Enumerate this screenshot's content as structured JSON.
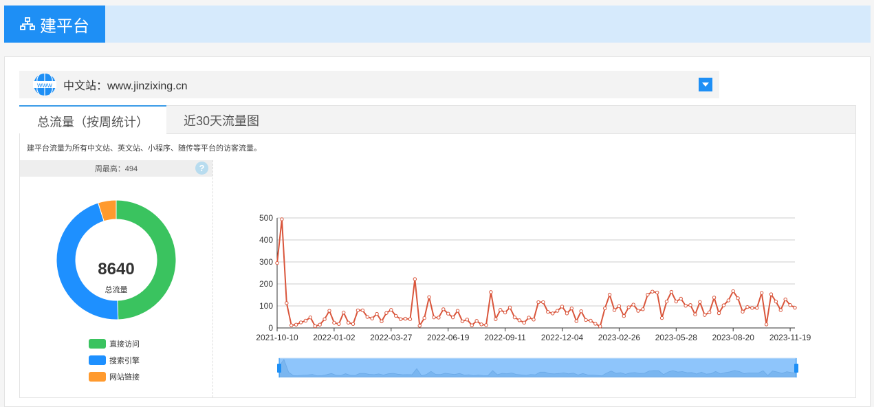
{
  "header": {
    "title": "建平台",
    "icon": "sitemap-icon"
  },
  "site_selector": {
    "label": "中文站：www.jinzixing.cn",
    "icon": "www-globe-icon"
  },
  "tabs": [
    {
      "label": "总流量（按周统计）",
      "active": true
    },
    {
      "label": "近30天流量图",
      "active": false
    }
  ],
  "description": "建平台流量为所有中文站、英文站、小程序、随传等平台的访客流量。",
  "weekly_max": "周最高：494",
  "donut": {
    "total": "8640",
    "total_label": "总流量"
  },
  "colors": {
    "accent": "#1e8ff5",
    "line": "#d9553b",
    "direct": "#3ac35f",
    "search": "#1e90ff",
    "link": "#ff9a2e"
  },
  "chart_data": [
    {
      "type": "pie",
      "variant": "donut",
      "categories": [
        "直接访问",
        "搜索引擎",
        "网站链接"
      ],
      "values": [
        4277,
        3940,
        423
      ],
      "colors": [
        "#3ac35f",
        "#1e90ff",
        "#ff9a2e"
      ],
      "legend": "bottom"
    },
    {
      "type": "line",
      "xlabel": "",
      "ylabel": "",
      "ylim": [
        0,
        500
      ],
      "yticks": [
        0,
        100,
        200,
        300,
        400,
        500
      ],
      "xtick_labels": [
        "2021-10-10",
        "2022-01-02",
        "2022-03-27",
        "2022-06-19",
        "2022-09-11",
        "2022-12-04",
        "2023-02-26",
        "2023-05-28",
        "2023-08-20",
        "2023-11-19"
      ],
      "x_start": "2021-10-10",
      "x_step": "1 week",
      "grid": true,
      "data_zoom": true,
      "values": [
        295,
        494,
        113,
        12,
        15,
        25,
        33,
        48,
        8,
        15,
        40,
        78,
        24,
        18,
        70,
        24,
        18,
        80,
        80,
        50,
        43,
        64,
        30,
        68,
        82,
        55,
        40,
        42,
        40,
        222,
        10,
        45,
        140,
        48,
        47,
        85,
        65,
        48,
        78,
        30,
        38,
        12,
        32,
        16,
        13,
        163,
        40,
        82,
        70,
        93,
        48,
        35,
        24,
        47,
        38,
        117,
        117,
        73,
        66,
        78,
        97,
        66,
        89,
        31,
        76,
        36,
        33,
        19,
        7,
        89,
        151,
        81,
        99,
        54,
        94,
        106,
        78,
        85,
        151,
        165,
        161,
        45,
        120,
        164,
        120,
        133,
        101,
        104,
        61,
        118,
        59,
        71,
        138,
        67,
        103,
        125,
        167,
        135,
        74,
        95,
        91,
        91,
        159,
        16,
        153,
        120,
        81,
        130,
        104,
        92
      ]
    }
  ]
}
